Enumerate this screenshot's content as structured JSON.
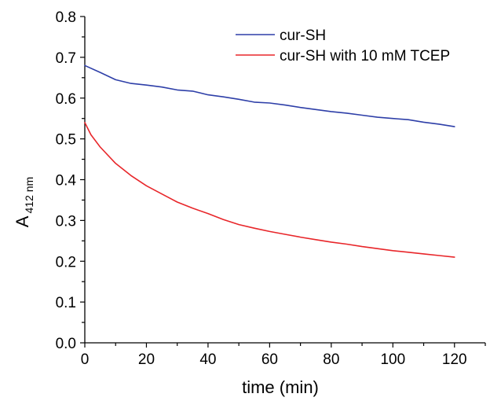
{
  "chart_data": {
    "type": "line",
    "title": "",
    "xlabel": "time (min)",
    "ylabel": "A",
    "ylabel_subscript": "412 nm",
    "xlim": [
      0,
      130
    ],
    "ylim": [
      0.0,
      0.8
    ],
    "xticks": [
      "0",
      "20",
      "40",
      "60",
      "80",
      "100",
      "120"
    ],
    "yticks": [
      "0.0",
      "0.1",
      "0.2",
      "0.3",
      "0.4",
      "0.5",
      "0.6",
      "0.7",
      "0.8"
    ],
    "grid": false,
    "legend_position": "top-right",
    "series": [
      {
        "name": "cur-SH",
        "color": "#2e3fa8",
        "x": [
          0,
          5,
          10,
          15,
          20,
          25,
          30,
          35,
          40,
          45,
          50,
          55,
          60,
          65,
          70,
          75,
          80,
          85,
          90,
          95,
          100,
          105,
          110,
          115,
          120
        ],
        "y": [
          0.68,
          0.663,
          0.645,
          0.636,
          0.632,
          0.627,
          0.62,
          0.617,
          0.608,
          0.603,
          0.597,
          0.59,
          0.588,
          0.583,
          0.577,
          0.572,
          0.567,
          0.563,
          0.558,
          0.553,
          0.55,
          0.547,
          0.541,
          0.536,
          0.53
        ]
      },
      {
        "name": "cur-SH with 10 mM TCEP",
        "color": "#e8262a",
        "x": [
          0,
          2,
          5,
          10,
          15,
          20,
          25,
          30,
          35,
          40,
          45,
          50,
          55,
          60,
          65,
          70,
          75,
          80,
          85,
          90,
          95,
          100,
          105,
          110,
          115,
          120
        ],
        "y": [
          0.54,
          0.51,
          0.48,
          0.44,
          0.41,
          0.385,
          0.365,
          0.345,
          0.33,
          0.317,
          0.302,
          0.29,
          0.281,
          0.273,
          0.266,
          0.259,
          0.253,
          0.247,
          0.242,
          0.236,
          0.231,
          0.226,
          0.222,
          0.218,
          0.214,
          0.21
        ]
      }
    ]
  }
}
